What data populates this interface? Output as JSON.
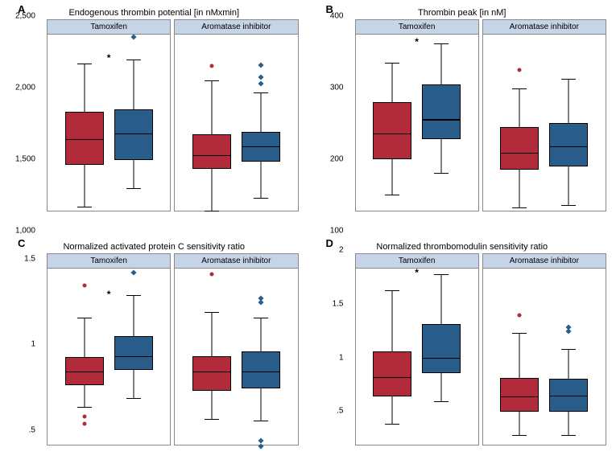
{
  "colors": {
    "red": "#b12b3a",
    "blue": "#2a5e8a",
    "header_bg": "#c5d4e6",
    "border": "#888888"
  },
  "sig_marker": "*",
  "panels": [
    {
      "letter": "A",
      "title": "Endogenous thrombin potential [in nMxmin]",
      "ylim": [
        1000,
        2500
      ],
      "yticks": [
        1000,
        1500,
        2000,
        2500
      ],
      "ytick_labels": [
        "1,000",
        "1,500",
        "2,000",
        "2,500"
      ],
      "subplots": [
        {
          "label": "Tamoxifen",
          "boxes": [
            {
              "color": "red",
              "q1": 1390,
              "median": 1610,
              "q3": 1845,
              "wlow": 1035,
              "whigh": 2250,
              "outliers": []
            },
            {
              "color": "blue",
              "q1": 1430,
              "median": 1660,
              "q3": 1860,
              "wlow": 1195,
              "whigh": 2290,
              "outliers": [
                {
                  "v": 2480,
                  "shape": "diamond"
                }
              ]
            }
          ],
          "sig": true
        },
        {
          "label": "Aromatase inhibitor",
          "boxes": [
            {
              "color": "red",
              "q1": 1355,
              "median": 1475,
              "q3": 1650,
              "wlow": 1000,
              "whigh": 2110,
              "outliers": [
                {
                  "v": 2230,
                  "shape": "circle"
                }
              ]
            },
            {
              "color": "blue",
              "q1": 1420,
              "median": 1550,
              "q3": 1670,
              "wlow": 1110,
              "whigh": 2010,
              "outliers": [
                {
                  "v": 2080,
                  "shape": "diamond"
                },
                {
                  "v": 2140,
                  "shape": "diamond"
                },
                {
                  "v": 2240,
                  "shape": "diamond"
                }
              ]
            }
          ],
          "sig": false
        }
      ]
    },
    {
      "letter": "B",
      "title": "Thrombin peak [in nM]",
      "ylim": [
        100,
        400
      ],
      "yticks": [
        100,
        200,
        300,
        400
      ],
      "ytick_labels": [
        "100",
        "200",
        "300",
        "400"
      ],
      "subplots": [
        {
          "label": "Tamoxifen",
          "boxes": [
            {
              "color": "red",
              "q1": 188,
              "median": 232,
              "q3": 285,
              "wlow": 127,
              "whigh": 352,
              "outliers": []
            },
            {
              "color": "blue",
              "q1": 222,
              "median": 256,
              "q3": 315,
              "wlow": 165,
              "whigh": 385,
              "outliers": []
            }
          ],
          "sig": true
        },
        {
          "label": "Aromatase inhibitor",
          "boxes": [
            {
              "color": "red",
              "q1": 170,
              "median": 199,
              "q3": 243,
              "wlow": 105,
              "whigh": 308,
              "outliers": [
                {
                  "v": 340,
                  "shape": "circle"
                }
              ]
            },
            {
              "color": "blue",
              "q1": 176,
              "median": 210,
              "q3": 250,
              "wlow": 110,
              "whigh": 325,
              "outliers": []
            }
          ],
          "sig": false
        }
      ]
    },
    {
      "letter": "C",
      "title": "Normalized activated protein C sensitivity ratio",
      "ylim": [
        0.3,
        1.55
      ],
      "yticks": [
        0.5,
        1.0,
        1.5
      ],
      "ytick_labels": [
        ".5",
        "1",
        "1.5"
      ],
      "subplots": [
        {
          "label": "Tamoxifen",
          "boxes": [
            {
              "color": "red",
              "q1": 0.72,
              "median": 0.82,
              "q3": 0.92,
              "wlow": 0.57,
              "whigh": 1.2,
              "outliers": [
                {
                  "v": 1.43,
                  "shape": "circle"
                },
                {
                  "v": 0.5,
                  "shape": "circle"
                },
                {
                  "v": 0.45,
                  "shape": "circle"
                }
              ]
            },
            {
              "color": "blue",
              "q1": 0.83,
              "median": 0.93,
              "q3": 1.07,
              "wlow": 0.63,
              "whigh": 1.36,
              "outliers": [
                {
                  "v": 1.52,
                  "shape": "diamond"
                }
              ]
            }
          ],
          "sig": true
        },
        {
          "label": "Aromatase inhibitor",
          "boxes": [
            {
              "color": "red",
              "q1": 0.68,
              "median": 0.82,
              "q3": 0.93,
              "wlow": 0.48,
              "whigh": 1.24,
              "outliers": [
                {
                  "v": 1.51,
                  "shape": "circle"
                }
              ]
            },
            {
              "color": "blue",
              "q1": 0.7,
              "median": 0.82,
              "q3": 0.96,
              "wlow": 0.47,
              "whigh": 1.2,
              "outliers": [
                {
                  "v": 1.31,
                  "shape": "diamond"
                },
                {
                  "v": 1.34,
                  "shape": "diamond"
                },
                {
                  "v": 0.33,
                  "shape": "diamond"
                },
                {
                  "v": 0.29,
                  "shape": "diamond"
                }
              ]
            }
          ],
          "sig": false
        }
      ]
    },
    {
      "letter": "D",
      "title": "Normalized thrombomodulin sensitivity ratio",
      "ylim": [
        0,
        2.0
      ],
      "yticks": [
        0.5,
        1.0,
        1.5,
        2.0
      ],
      "ytick_labels": [
        ".5",
        "1",
        "1.5",
        "2"
      ],
      "subplots": [
        {
          "label": "Tamoxifen",
          "boxes": [
            {
              "color": "red",
              "q1": 0.55,
              "median": 0.77,
              "q3": 1.06,
              "wlow": 0.24,
              "whigh": 1.75,
              "outliers": []
            },
            {
              "color": "blue",
              "q1": 0.81,
              "median": 0.99,
              "q3": 1.37,
              "wlow": 0.49,
              "whigh": 1.94,
              "outliers": []
            }
          ],
          "sig": true
        },
        {
          "label": "Aromatase inhibitor",
          "boxes": [
            {
              "color": "red",
              "q1": 0.37,
              "median": 0.55,
              "q3": 0.76,
              "wlow": 0.11,
              "whigh": 1.27,
              "outliers": [
                {
                  "v": 1.47,
                  "shape": "circle"
                }
              ]
            },
            {
              "color": "blue",
              "q1": 0.37,
              "median": 0.56,
              "q3": 0.75,
              "wlow": 0.11,
              "whigh": 1.09,
              "outliers": [
                {
                  "v": 1.29,
                  "shape": "diamond"
                },
                {
                  "v": 1.33,
                  "shape": "diamond"
                }
              ]
            }
          ],
          "sig": false
        }
      ]
    }
  ]
}
